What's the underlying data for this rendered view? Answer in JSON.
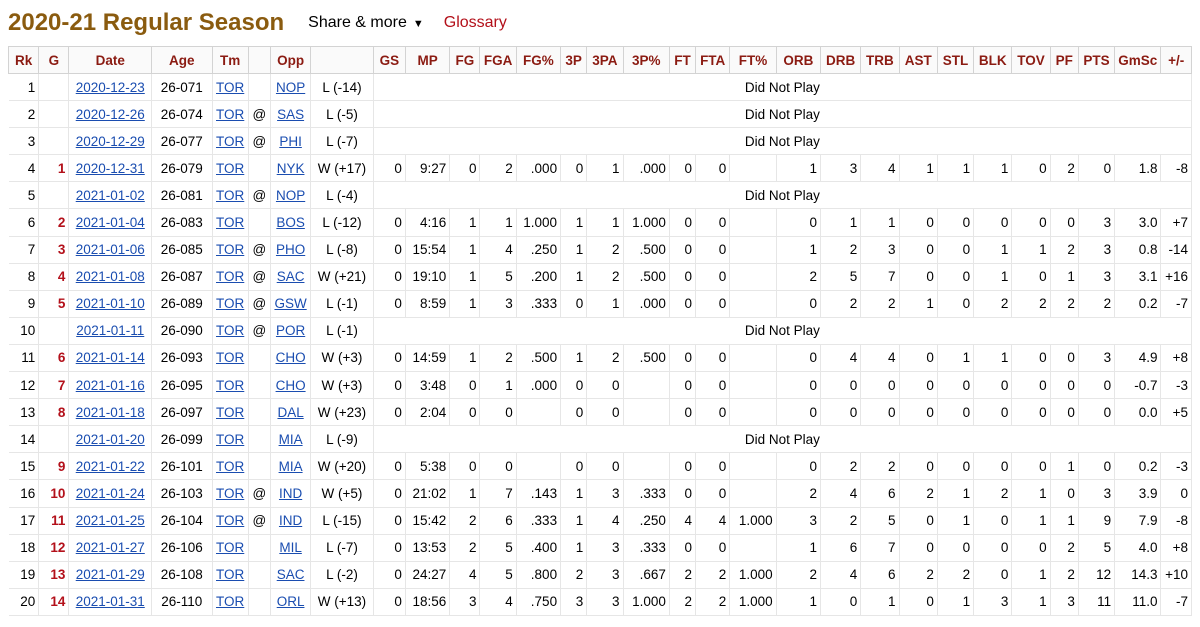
{
  "header": {
    "title": "2020-21 Regular Season",
    "share_label": "Share & more",
    "share_caret": "▼",
    "glossary_label": "Glossary"
  },
  "table": {
    "columns": [
      "Rk",
      "G",
      "Date",
      "Age",
      "Tm",
      "",
      "Opp",
      "",
      "GS",
      "MP",
      "FG",
      "FGA",
      "FG%",
      "3P",
      "3PA",
      "3P%",
      "FT",
      "FTA",
      "FT%",
      "ORB",
      "DRB",
      "TRB",
      "AST",
      "STL",
      "BLK",
      "TOV",
      "PF",
      "PTS",
      "GmSc",
      "+/-"
    ],
    "rows": [
      {
        "rk": "1",
        "g": "",
        "date": "2020-12-23",
        "age": "26-071",
        "tm": "TOR",
        "loc": "",
        "opp": "NOP",
        "res": "L (-14)",
        "dnp": "Did Not Play"
      },
      {
        "rk": "2",
        "g": "",
        "date": "2020-12-26",
        "age": "26-074",
        "tm": "TOR",
        "loc": "@",
        "opp": "SAS",
        "res": "L (-5)",
        "dnp": "Did Not Play"
      },
      {
        "rk": "3",
        "g": "",
        "date": "2020-12-29",
        "age": "26-077",
        "tm": "TOR",
        "loc": "@",
        "opp": "PHI",
        "res": "L (-7)",
        "dnp": "Did Not Play"
      },
      {
        "rk": "4",
        "g": "1",
        "date": "2020-12-31",
        "age": "26-079",
        "tm": "TOR",
        "loc": "",
        "opp": "NYK",
        "res": "W (+17)",
        "stats": [
          "0",
          "9:27",
          "0",
          "2",
          ".000",
          "0",
          "1",
          ".000",
          "0",
          "0",
          "",
          "1",
          "3",
          "4",
          "1",
          "1",
          "1",
          "0",
          "2",
          "0",
          "1.8",
          "-8"
        ]
      },
      {
        "rk": "5",
        "g": "",
        "date": "2021-01-02",
        "age": "26-081",
        "tm": "TOR",
        "loc": "@",
        "opp": "NOP",
        "res": "L (-4)",
        "dnp": "Did Not Play"
      },
      {
        "rk": "6",
        "g": "2",
        "date": "2021-01-04",
        "age": "26-083",
        "tm": "TOR",
        "loc": "",
        "opp": "BOS",
        "res": "L (-12)",
        "stats": [
          "0",
          "4:16",
          "1",
          "1",
          "1.000",
          "1",
          "1",
          "1.000",
          "0",
          "0",
          "",
          "0",
          "1",
          "1",
          "0",
          "0",
          "0",
          "0",
          "0",
          "3",
          "3.0",
          "+7"
        ]
      },
      {
        "rk": "7",
        "g": "3",
        "date": "2021-01-06",
        "age": "26-085",
        "tm": "TOR",
        "loc": "@",
        "opp": "PHO",
        "res": "L (-8)",
        "stats": [
          "0",
          "15:54",
          "1",
          "4",
          ".250",
          "1",
          "2",
          ".500",
          "0",
          "0",
          "",
          "1",
          "2",
          "3",
          "0",
          "0",
          "1",
          "1",
          "2",
          "3",
          "0.8",
          "-14"
        ]
      },
      {
        "rk": "8",
        "g": "4",
        "date": "2021-01-08",
        "age": "26-087",
        "tm": "TOR",
        "loc": "@",
        "opp": "SAC",
        "res": "W (+21)",
        "stats": [
          "0",
          "19:10",
          "1",
          "5",
          ".200",
          "1",
          "2",
          ".500",
          "0",
          "0",
          "",
          "2",
          "5",
          "7",
          "0",
          "0",
          "1",
          "0",
          "1",
          "3",
          "3.1",
          "+16"
        ]
      },
      {
        "rk": "9",
        "g": "5",
        "date": "2021-01-10",
        "age": "26-089",
        "tm": "TOR",
        "loc": "@",
        "opp": "GSW",
        "res": "L (-1)",
        "stats": [
          "0",
          "8:59",
          "1",
          "3",
          ".333",
          "0",
          "1",
          ".000",
          "0",
          "0",
          "",
          "0",
          "2",
          "2",
          "1",
          "0",
          "2",
          "2",
          "2",
          "2",
          "0.2",
          "-7"
        ]
      },
      {
        "rk": "10",
        "g": "",
        "date": "2021-01-11",
        "age": "26-090",
        "tm": "TOR",
        "loc": "@",
        "opp": "POR",
        "res": "L (-1)",
        "dnp": "Did Not Play"
      },
      {
        "rk": "11",
        "g": "6",
        "date": "2021-01-14",
        "age": "26-093",
        "tm": "TOR",
        "loc": "",
        "opp": "CHO",
        "res": "W (+3)",
        "stats": [
          "0",
          "14:59",
          "1",
          "2",
          ".500",
          "1",
          "2",
          ".500",
          "0",
          "0",
          "",
          "0",
          "4",
          "4",
          "0",
          "1",
          "1",
          "0",
          "0",
          "3",
          "4.9",
          "+8"
        ]
      },
      {
        "rk": "12",
        "g": "7",
        "date": "2021-01-16",
        "age": "26-095",
        "tm": "TOR",
        "loc": "",
        "opp": "CHO",
        "res": "W (+3)",
        "stats": [
          "0",
          "3:48",
          "0",
          "1",
          ".000",
          "0",
          "0",
          "",
          "0",
          "0",
          "",
          "0",
          "0",
          "0",
          "0",
          "0",
          "0",
          "0",
          "0",
          "0",
          "-0.7",
          "-3"
        ]
      },
      {
        "rk": "13",
        "g": "8",
        "date": "2021-01-18",
        "age": "26-097",
        "tm": "TOR",
        "loc": "",
        "opp": "DAL",
        "res": "W (+23)",
        "stats": [
          "0",
          "2:04",
          "0",
          "0",
          "",
          "0",
          "0",
          "",
          "0",
          "0",
          "",
          "0",
          "0",
          "0",
          "0",
          "0",
          "0",
          "0",
          "0",
          "0",
          "0.0",
          "+5"
        ]
      },
      {
        "rk": "14",
        "g": "",
        "date": "2021-01-20",
        "age": "26-099",
        "tm": "TOR",
        "loc": "",
        "opp": "MIA",
        "res": "L (-9)",
        "dnp": "Did Not Play"
      },
      {
        "rk": "15",
        "g": "9",
        "date": "2021-01-22",
        "age": "26-101",
        "tm": "TOR",
        "loc": "",
        "opp": "MIA",
        "res": "W (+20)",
        "stats": [
          "0",
          "5:38",
          "0",
          "0",
          "",
          "0",
          "0",
          "",
          "0",
          "0",
          "",
          "0",
          "2",
          "2",
          "0",
          "0",
          "0",
          "0",
          "1",
          "0",
          "0.2",
          "-3"
        ]
      },
      {
        "rk": "16",
        "g": "10",
        "date": "2021-01-24",
        "age": "26-103",
        "tm": "TOR",
        "loc": "@",
        "opp": "IND",
        "res": "W (+5)",
        "stats": [
          "0",
          "21:02",
          "1",
          "7",
          ".143",
          "1",
          "3",
          ".333",
          "0",
          "0",
          "",
          "2",
          "4",
          "6",
          "2",
          "1",
          "2",
          "1",
          "0",
          "3",
          "3.9",
          "0"
        ]
      },
      {
        "rk": "17",
        "g": "11",
        "date": "2021-01-25",
        "age": "26-104",
        "tm": "TOR",
        "loc": "@",
        "opp": "IND",
        "res": "L (-15)",
        "stats": [
          "0",
          "15:42",
          "2",
          "6",
          ".333",
          "1",
          "4",
          ".250",
          "4",
          "4",
          "1.000",
          "3",
          "2",
          "5",
          "0",
          "1",
          "0",
          "1",
          "1",
          "9",
          "7.9",
          "-8"
        ]
      },
      {
        "rk": "18",
        "g": "12",
        "date": "2021-01-27",
        "age": "26-106",
        "tm": "TOR",
        "loc": "",
        "opp": "MIL",
        "res": "L (-7)",
        "stats": [
          "0",
          "13:53",
          "2",
          "5",
          ".400",
          "1",
          "3",
          ".333",
          "0",
          "0",
          "",
          "1",
          "6",
          "7",
          "0",
          "0",
          "0",
          "0",
          "2",
          "5",
          "4.0",
          "+8"
        ]
      },
      {
        "rk": "19",
        "g": "13",
        "date": "2021-01-29",
        "age": "26-108",
        "tm": "TOR",
        "loc": "",
        "opp": "SAC",
        "res": "L (-2)",
        "stats": [
          "0",
          "24:27",
          "4",
          "5",
          ".800",
          "2",
          "3",
          ".667",
          "2",
          "2",
          "1.000",
          "2",
          "4",
          "6",
          "2",
          "2",
          "0",
          "1",
          "2",
          "12",
          "14.3",
          "+10"
        ]
      },
      {
        "rk": "20",
        "g": "14",
        "date": "2021-01-31",
        "age": "26-110",
        "tm": "TOR",
        "loc": "",
        "opp": "ORL",
        "res": "W (+13)",
        "stats": [
          "0",
          "18:56",
          "3",
          "4",
          ".750",
          "3",
          "3",
          "1.000",
          "2",
          "2",
          "1.000",
          "1",
          "0",
          "1",
          "0",
          "1",
          "3",
          "1",
          "3",
          "11",
          "11.0",
          "-7"
        ]
      }
    ]
  }
}
